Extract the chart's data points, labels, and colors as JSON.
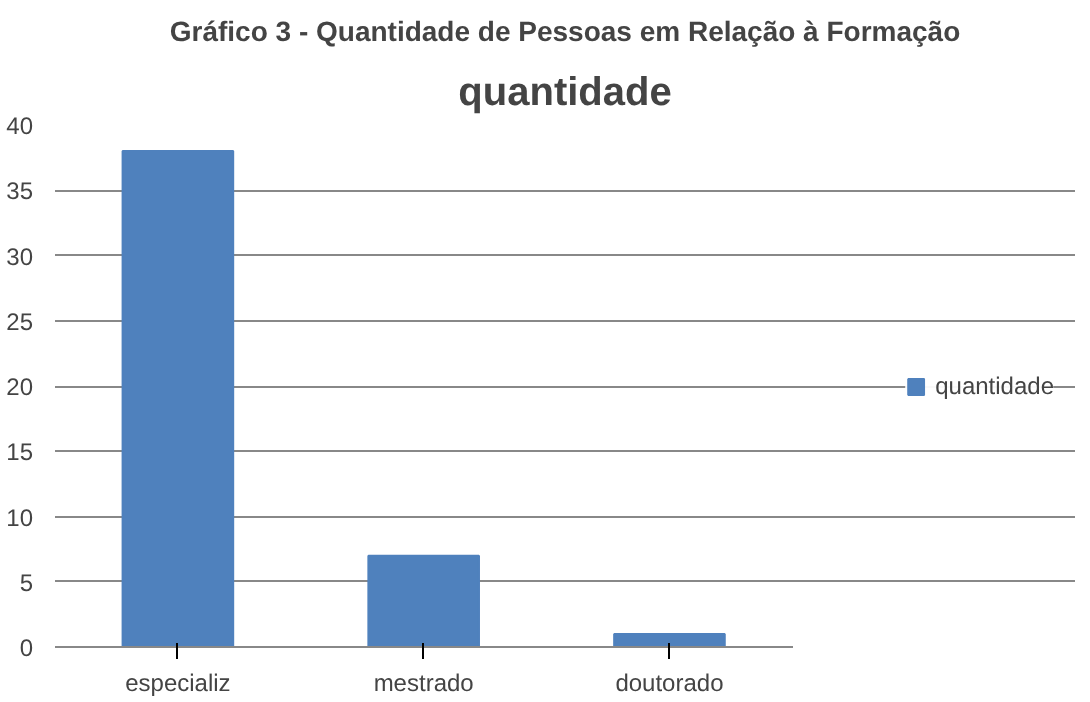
{
  "chart_data": {
    "type": "bar",
    "title": "Gráfico 3 - Quantidade de Pessoas em Relação à Formação",
    "subtitle": "quantidade",
    "categories": [
      "especializ",
      "mestrado",
      "doutorado"
    ],
    "series": [
      {
        "name": "quantidade",
        "color": "#4f81bd",
        "values": [
          38,
          7,
          1
        ]
      }
    ],
    "ylim": [
      0,
      40
    ],
    "yticks": [
      0,
      5,
      10,
      15,
      20,
      25,
      30,
      35,
      40
    ],
    "grid": "y",
    "legend": "right"
  }
}
